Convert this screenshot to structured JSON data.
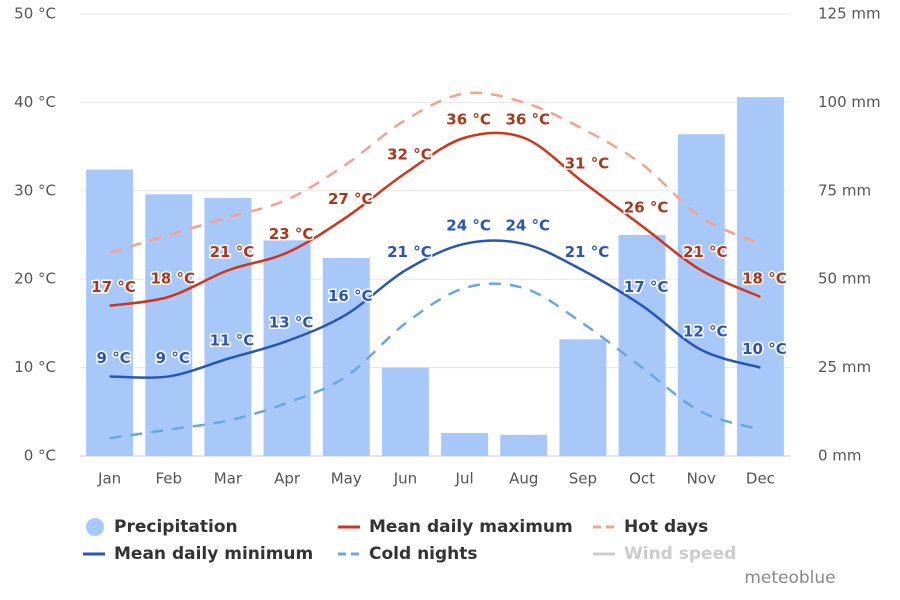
{
  "chart_data": {
    "type": "bar-line",
    "categories": [
      "Jan",
      "Feb",
      "Mar",
      "Apr",
      "May",
      "Jun",
      "Jul",
      "Aug",
      "Sep",
      "Oct",
      "Nov",
      "Dec"
    ],
    "ylim": [
      0,
      50
    ],
    "yticks": [
      {
        "value": 0,
        "label": "0 °C"
      },
      {
        "value": 10,
        "label": "10 °C"
      },
      {
        "value": 20,
        "label": "20 °C"
      },
      {
        "value": 30,
        "label": "30 °C"
      },
      {
        "value": 40,
        "label": "40 °C"
      },
      {
        "value": 50,
        "label": "50 °C"
      }
    ],
    "y2lim": [
      0,
      125
    ],
    "y2ticks": [
      {
        "value": 0,
        "label": "0 mm"
      },
      {
        "value": 25,
        "label": "25 mm"
      },
      {
        "value": 50,
        "label": "50 mm"
      },
      {
        "value": 75,
        "label": "75 mm"
      },
      {
        "value": 100,
        "label": "100 mm"
      },
      {
        "value": 125,
        "label": "125 mm"
      }
    ],
    "grid": true,
    "series": [
      {
        "name": "Precipitation",
        "type": "bar",
        "axis": "y2",
        "color": "#a9c8fa",
        "values": [
          81,
          74,
          73,
          61,
          56,
          25,
          6.5,
          6,
          33,
          62.5,
          91,
          101.5
        ]
      },
      {
        "name": "Mean daily maximum",
        "type": "line",
        "color": "#d0341c",
        "label_color": "#a8381c",
        "values": [
          17,
          18,
          21,
          23,
          27,
          32,
          36,
          36,
          31,
          26,
          21,
          18
        ],
        "value_labels": [
          "17 °C",
          "18 °C",
          "21 °C",
          "23 °C",
          "27 °C",
          "32 °C",
          "36 °C",
          "36 °C",
          "31 °C",
          "26 °C",
          "21 °C",
          "18 °C"
        ]
      },
      {
        "name": "Hot days",
        "type": "line",
        "dashed": true,
        "color": "#f4a28e",
        "values": [
          23,
          25,
          27,
          29,
          33,
          38,
          41,
          40,
          37,
          33,
          27,
          24
        ]
      },
      {
        "name": "Mean daily minimum",
        "type": "line",
        "color": "#2a55b2",
        "label_color": "#2a55b2",
        "values": [
          9,
          9,
          11,
          13,
          16,
          21,
          24,
          24,
          21,
          17,
          12,
          10
        ],
        "value_labels": [
          "9 °C",
          "9 °C",
          "11 °C",
          "13 °C",
          "16 °C",
          "21 °C",
          "24 °C",
          "24 °C",
          "21 °C",
          "17 °C",
          "12 °C",
          "10 °C"
        ]
      },
      {
        "name": "Cold nights",
        "type": "line",
        "dashed": true,
        "color": "#6ca6dc",
        "values": [
          2,
          3,
          4,
          6,
          9,
          15,
          19,
          19,
          15,
          10,
          5,
          3
        ]
      },
      {
        "name": "Wind speed",
        "type": "line",
        "visible": false,
        "color": "#cccccc"
      }
    ],
    "watermark": "meteoblue"
  }
}
